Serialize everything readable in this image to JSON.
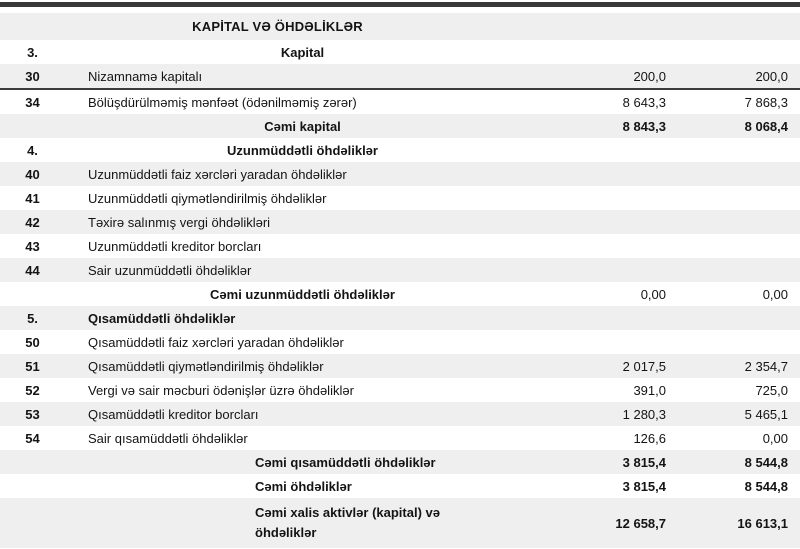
{
  "title": "KAPİTAL VƏ ÖHDƏLİKLƏR",
  "rows": [
    {
      "num": "3.",
      "label": "Kapital",
      "v1": "",
      "v2": "",
      "bold": true,
      "vbold": false,
      "align": "center"
    },
    {
      "num": "30",
      "label": "Nizamnamə kapitalı",
      "v1": "200,0",
      "v2": "200,0",
      "bold": false,
      "vbold": false,
      "align": "left"
    },
    {
      "num": "34",
      "label": "Bölüşdürülməmiş mənfəət (ödənilməmiş zərər)",
      "v1": "8 643,3",
      "v2": "7 868,3",
      "bold": false,
      "vbold": false,
      "align": "left"
    },
    {
      "num": "",
      "label": "Cəmi kapital",
      "v1": "8 843,3",
      "v2": "8 068,4",
      "bold": true,
      "vbold": true,
      "align": "center"
    },
    {
      "num": "4.",
      "label": "Uzunmüddətli öhdəliklər",
      "v1": "",
      "v2": "",
      "bold": true,
      "vbold": false,
      "align": "center"
    },
    {
      "num": "40",
      "label": "Uzunmüddətli faiz xərcləri yaradan öhdəliklər",
      "v1": "",
      "v2": "",
      "bold": false,
      "vbold": false,
      "align": "left"
    },
    {
      "num": "41",
      "label": "Uzunmüddətli qiymətləndirilmiş öhdəliklər",
      "v1": "",
      "v2": "",
      "bold": false,
      "vbold": false,
      "align": "left"
    },
    {
      "num": "42",
      "label": "Təxirə salınmış vergi öhdəlikləri",
      "v1": "",
      "v2": "",
      "bold": false,
      "vbold": false,
      "align": "left"
    },
    {
      "num": "43",
      "label": "Uzunmüddətli kreditor borcları",
      "v1": "",
      "v2": "",
      "bold": false,
      "vbold": false,
      "align": "left"
    },
    {
      "num": "44",
      "label": "Sair uzunmüddətli öhdəliklər",
      "v1": "",
      "v2": "",
      "bold": false,
      "vbold": false,
      "align": "left"
    },
    {
      "num": "",
      "label": "Cəmi uzunmüddətli öhdəliklər",
      "v1": "0,00",
      "v2": "0,00",
      "bold": true,
      "vbold": false,
      "align": "center"
    },
    {
      "num": "5.",
      "label": "Qısamüddətli öhdəliklər",
      "v1": "",
      "v2": "",
      "bold": true,
      "vbold": false,
      "align": "left"
    },
    {
      "num": "50",
      "label": "Qısamüddətli faiz xərcləri yaradan öhdəliklər",
      "v1": "",
      "v2": "",
      "bold": false,
      "vbold": false,
      "align": "left"
    },
    {
      "num": "51",
      "label": "Qısamüddətli qiymətləndirilmiş öhdəliklər",
      "v1": "2 017,5",
      "v2": "2 354,7",
      "bold": false,
      "vbold": false,
      "align": "left"
    },
    {
      "num": "52",
      "label": "Vergi və sair məcburi ödənişlər üzrə öhdəliklər",
      "v1": "391,0",
      "v2": "725,0",
      "bold": false,
      "vbold": false,
      "align": "left"
    },
    {
      "num": "53",
      "label": "Qısamüddətli kreditor borcları",
      "v1": "1 280,3",
      "v2": "5 465,1",
      "bold": false,
      "vbold": false,
      "align": "left"
    },
    {
      "num": "54",
      "label": "Sair qısamüddətli öhdəliklər",
      "v1": "126,6",
      "v2": "0,00",
      "bold": false,
      "vbold": false,
      "align": "left"
    },
    {
      "num": "",
      "label": "Cəmi qısamüddətli öhdəliklər",
      "v1": "3 815,4",
      "v2": "8 544,8",
      "bold": true,
      "vbold": true,
      "align": "indent"
    },
    {
      "num": "",
      "label": "Cəmi öhdəliklər",
      "v1": "3 815,4",
      "v2": "8 544,8",
      "bold": true,
      "vbold": true,
      "align": "indent"
    },
    {
      "num": "",
      "label": "Cəmi xalis aktivlər (kapital) və öhdəliklər",
      "v1": "12 658,7",
      "v2": "16 613,1",
      "bold": true,
      "vbold": true,
      "align": "indent",
      "wrap": true
    }
  ]
}
